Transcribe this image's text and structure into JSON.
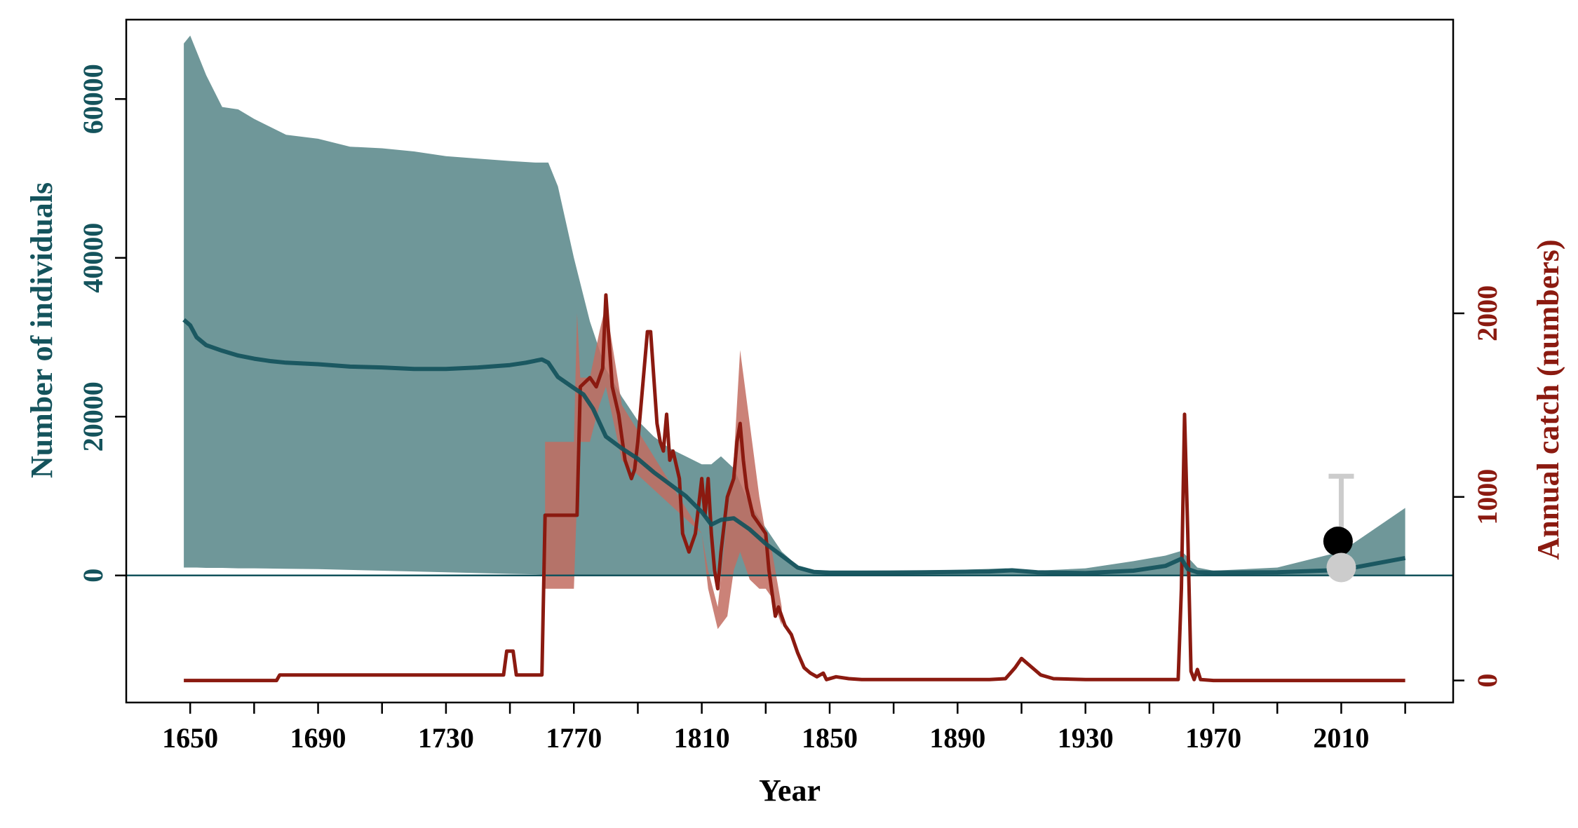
{
  "colors": {
    "population": "#14535c",
    "population_band": "#6f9799",
    "catch": "#8b1a10",
    "catch_band": "#c26c60",
    "observation_black": "#000000",
    "observation_grey": "#cccccc"
  },
  "chart_data": {
    "type": "line",
    "title": "",
    "xlabel": "Year",
    "ylabel_left": "Number of individuals",
    "ylabel_right": "Annual catch (numbers)",
    "xlim": [
      1630,
      2045
    ],
    "xticks": [
      1650,
      1690,
      1730,
      1770,
      1810,
      1850,
      1890,
      1930,
      1970,
      2010
    ],
    "x_minor_ticks": [
      1670,
      1710,
      1750,
      1790,
      1830,
      1870,
      1910,
      1950,
      1990,
      2030
    ],
    "ylim_left": [
      -16000,
      70000
    ],
    "yticks_left": [
      0,
      20000,
      40000,
      60000
    ],
    "ylim_right": [
      -120,
      3600
    ],
    "yticks_right": [
      0,
      1000,
      2000
    ],
    "grid": false,
    "legend": "none",
    "series": [
      {
        "axis": "left",
        "kind": "line",
        "x": [
          1648,
          1650,
          1652,
          1655,
          1660,
          1665,
          1670,
          1675,
          1680,
          1690,
          1700,
          1710,
          1720,
          1730,
          1740,
          1750,
          1755,
          1760,
          1762,
          1765,
          1770,
          1773,
          1776,
          1780,
          1785,
          1790,
          1795,
          1800,
          1805,
          1810,
          1813,
          1816,
          1820,
          1825,
          1830,
          1835,
          1840,
          1845,
          1850,
          1860,
          1880,
          1900,
          1907,
          1915,
          1930,
          1945,
          1955,
          1960,
          1962,
          1965,
          1970,
          1990,
          2010,
          2030
        ],
        "y": [
          32200,
          31500,
          30000,
          29000,
          28300,
          27700,
          27300,
          27000,
          26800,
          26600,
          26300,
          26200,
          26000,
          26000,
          26200,
          26500,
          26800,
          27200,
          26800,
          25000,
          23600,
          22800,
          21000,
          17500,
          16000,
          14700,
          13000,
          11500,
          10000,
          8000,
          6400,
          7000,
          7200,
          5800,
          4000,
          2500,
          1000,
          450,
          350,
          350,
          400,
          500,
          650,
          400,
          300,
          600,
          1200,
          2100,
          800,
          400,
          350,
          400,
          700,
          2200
        ]
      },
      {
        "axis": "left",
        "kind": "band",
        "x": [
          1648,
          1650,
          1652,
          1655,
          1660,
          1665,
          1670,
          1680,
          1690,
          1700,
          1710,
          1720,
          1730,
          1740,
          1750,
          1758,
          1762,
          1765,
          1770,
          1775,
          1780,
          1785,
          1790,
          1795,
          1800,
          1805,
          1810,
          1813,
          1816,
          1820,
          1825,
          1830,
          1835,
          1840,
          1845,
          1850,
          1870,
          1890,
          1905,
          1915,
          1930,
          1945,
          1955,
          1960,
          1962,
          1965,
          1970,
          1990,
          2010,
          2030
        ],
        "upper": [
          67000,
          68000,
          66000,
          63000,
          59000,
          58700,
          57500,
          55500,
          55000,
          54000,
          53800,
          53400,
          52800,
          52500,
          52200,
          52000,
          52000,
          49000,
          40000,
          32000,
          26000,
          22500,
          19500,
          17500,
          16000,
          15000,
          14000,
          14000,
          15000,
          13500,
          9000,
          6000,
          3000,
          1200,
          700,
          600,
          600,
          700,
          900,
          600,
          900,
          1800,
          2500,
          3100,
          2300,
          1000,
          600,
          1000,
          3000,
          8500
        ],
        "lower": [
          1000,
          1000,
          1000,
          950,
          950,
          900,
          900,
          850,
          800,
          700,
          600,
          500,
          400,
          300,
          200,
          150,
          100,
          80,
          50,
          40,
          30,
          25,
          20,
          20,
          15,
          15,
          10,
          10,
          10,
          10,
          10,
          10,
          10,
          10,
          10,
          10,
          10,
          10,
          10,
          10,
          10,
          10,
          10,
          10,
          10,
          10,
          10,
          10,
          10,
          10
        ]
      },
      {
        "axis": "right",
        "kind": "line",
        "x": [
          1648,
          1677,
          1678,
          1748,
          1749,
          1751,
          1752,
          1760,
          1761,
          1762,
          1771,
          1772,
          1775,
          1777,
          1779,
          1780,
          1782,
          1784,
          1786,
          1788,
          1789,
          1790,
          1791,
          1793,
          1794,
          1796,
          1797,
          1798,
          1799,
          1800,
          1801,
          1803,
          1804,
          1806,
          1808,
          1809,
          1810,
          1811,
          1812,
          1813,
          1814,
          1815,
          1816,
          1818,
          1820,
          1821,
          1822,
          1823,
          1824,
          1826,
          1828,
          1830,
          1831,
          1833,
          1834,
          1836,
          1838,
          1840,
          1842,
          1844,
          1846,
          1848,
          1849,
          1852,
          1856,
          1860,
          1870,
          1880,
          1890,
          1900,
          1905,
          1908,
          1910,
          1912,
          1914,
          1916,
          1920,
          1930,
          1940,
          1950,
          1956,
          1958,
          1959,
          1960,
          1961,
          1962,
          1963,
          1964,
          1965,
          1966,
          1970,
          2030
        ],
        "y": [
          0,
          0,
          30,
          30,
          160,
          160,
          30,
          30,
          900,
          900,
          900,
          1600,
          1650,
          1600,
          1700,
          2100,
          1600,
          1450,
          1200,
          1100,
          1150,
          1300,
          1500,
          1900,
          1900,
          1400,
          1300,
          1250,
          1450,
          1200,
          1250,
          1100,
          800,
          700,
          800,
          950,
          1100,
          900,
          1100,
          800,
          600,
          500,
          700,
          1000,
          1100,
          1300,
          1400,
          1200,
          1050,
          900,
          850,
          800,
          600,
          350,
          400,
          300,
          250,
          150,
          70,
          40,
          20,
          40,
          5,
          20,
          10,
          5,
          5,
          5,
          5,
          5,
          10,
          70,
          120,
          90,
          60,
          30,
          10,
          5,
          5,
          5,
          5,
          5,
          5,
          500,
          1450,
          800,
          50,
          5,
          60,
          5,
          0,
          0
        ]
      },
      {
        "axis": "right",
        "kind": "band",
        "x": [
          1761,
          1762,
          1770,
          1771,
          1772,
          1775,
          1778,
          1780,
          1785,
          1810,
          1812,
          1815,
          1818,
          1820,
          1822,
          1825,
          1828,
          1830,
          1832,
          1835
        ],
        "upper": [
          1300,
          1300,
          1300,
          2000,
          1650,
          1650,
          1900,
          2050,
          1500,
          800,
          600,
          400,
          900,
          1200,
          1800,
          1400,
          1000,
          800,
          700,
          400
        ],
        "lower": [
          500,
          500,
          500,
          1000,
          1300,
          1300,
          1500,
          1600,
          1200,
          800,
          500,
          280,
          350,
          600,
          700,
          550,
          500,
          500,
          450,
          300
        ]
      },
      {
        "axis": "left",
        "kind": "points",
        "x": [
          2009,
          2010
        ],
        "y": [
          4300,
          1000
        ],
        "error_upper": [
          null,
          12500
        ]
      }
    ]
  }
}
